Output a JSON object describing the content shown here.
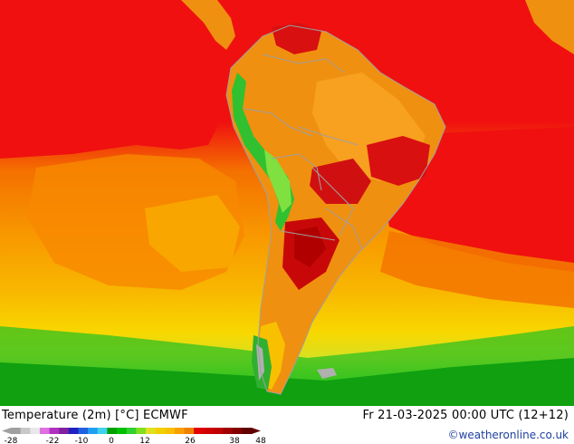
{
  "title": "Temperature (2m) [°C] ECMWF",
  "valid_time": "Fr 21-03-2025 00:00 UTC (12+12)",
  "credit": "©weatheronline.co.uk",
  "legend": {
    "ticks": [
      "-28",
      "-22",
      "-10",
      "0",
      "12",
      "26",
      "38",
      "48"
    ],
    "colors": [
      "#a0a0a0",
      "#c8c8c8",
      "#e8e8e8",
      "#e070e0",
      "#b030c0",
      "#8020a0",
      "#2020c0",
      "#2060e0",
      "#20a0f0",
      "#40d0f0",
      "#00a000",
      "#00c000",
      "#30d030",
      "#80e020",
      "#e0e020",
      "#f0d000",
      "#f8c000",
      "#f8a000",
      "#f08000",
      "#e00000",
      "#d00000",
      "#c00000",
      "#a00000",
      "#800000",
      "#600000"
    ]
  },
  "map": {
    "palette": {
      "ocean_hot": "#f01010",
      "ocean_warm": "#f88000",
      "ocean_mild": "#f8a800",
      "ocean_cool": "#f8d000",
      "ocean_cold": "#e0e020",
      "ocean_colder": "#90e020",
      "ocean_coldest": "#20c020",
      "land_base": "#f09010",
      "land_hot": "#d81010",
      "land_very_hot": "#b00000",
      "andes": "#30c030",
      "andes_cold": "#80e040",
      "border": "#a0a0a0",
      "snow": "#b0b0b0"
    }
  }
}
